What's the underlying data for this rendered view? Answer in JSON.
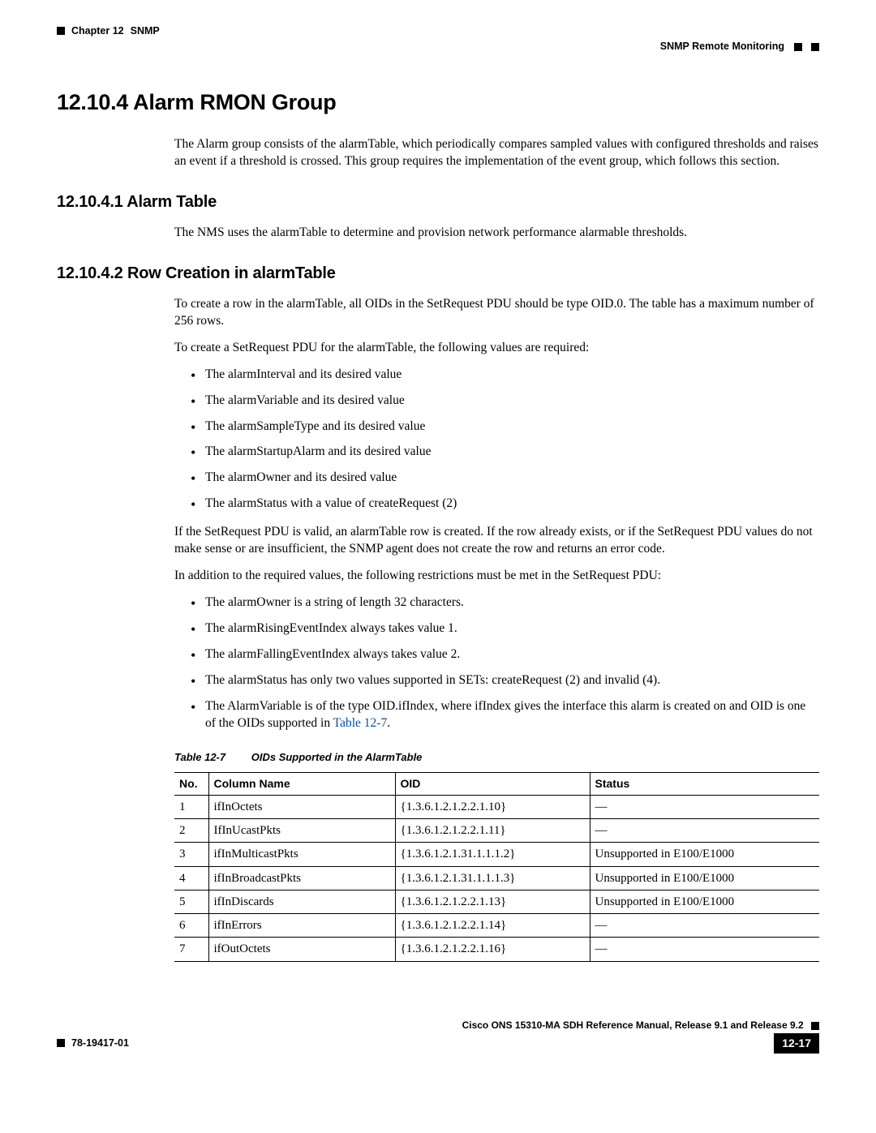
{
  "header": {
    "chapter_label": "Chapter 12",
    "chapter_title": "SNMP",
    "section_title": "SNMP Remote Monitoring"
  },
  "headings": {
    "h1": "12.10.4  Alarm RMON Group",
    "h2_1": "12.10.4.1  Alarm Table",
    "h2_2": "12.10.4.2  Row Creation in alarmTable"
  },
  "paragraphs": {
    "intro": "The Alarm group consists of the alarmTable, which periodically compares sampled values with configured thresholds and raises an event if a threshold is crossed. This group requires the implementation of the event group, which follows this section.",
    "alarm_table": "The NMS uses the alarmTable to determine and provision network performance alarmable thresholds.",
    "row_creation_1": "To create a row in the alarmTable, all OIDs in the SetRequest PDU should be type OID.0. The table has a maximum number of 256 rows.",
    "row_creation_2": "To create a SetRequest PDU for the alarmTable, the following values are required:",
    "row_creation_3": "If the SetRequest PDU is valid, an alarmTable row is created. If the row already exists, or if the SetRequest PDU values do not make sense or are insufficient, the SNMP agent does not create the row and returns an error code.",
    "row_creation_4": "In addition to the required values, the following restrictions must be met in the SetRequest PDU:"
  },
  "list_required": [
    "The alarmInterval and its desired value",
    "The alarmVariable and its desired value",
    "The alarmSampleType and its desired value",
    "The alarmStartupAlarm and its desired value",
    "The alarmOwner and its desired value",
    "The alarmStatus with a value of createRequest (2)"
  ],
  "list_restrictions": [
    "The alarmOwner is a string of length 32 characters.",
    "The alarmRisingEventIndex always takes value 1.",
    "The alarmFallingEventIndex always takes value 2.",
    "The alarmStatus has only two values supported in SETs: createRequest (2) and invalid (4)."
  ],
  "list_restrictions_last_pre": "The AlarmVariable is of the type OID.ifIndex, where ifIndex gives the interface this alarm is created on and OID is one of the OIDs supported in ",
  "list_restrictions_last_link": "Table 12-7",
  "list_restrictions_last_post": ".",
  "table": {
    "caption_label": "Table 12-7",
    "caption_title": "OIDs Supported in the AlarmTable",
    "columns": [
      "No.",
      "Column Name",
      "OID",
      "Status"
    ],
    "rows": [
      [
        "1",
        "ifInOctets",
        "{1.3.6.1.2.1.2.2.1.10}",
        "—"
      ],
      [
        "2",
        "IfInUcastPkts",
        "{1.3.6.1.2.1.2.2.1.11}",
        "—"
      ],
      [
        "3",
        "ifInMulticastPkts",
        "{1.3.6.1.2.1.31.1.1.1.2}",
        "Unsupported in E100/E1000"
      ],
      [
        "4",
        "ifInBroadcastPkts",
        "{1.3.6.1.2.1.31.1.1.1.3}",
        "Unsupported in E100/E1000"
      ],
      [
        "5",
        "ifInDiscards",
        "{1.3.6.1.2.1.2.2.1.13}",
        "Unsupported in E100/E1000"
      ],
      [
        "6",
        "ifInErrors",
        "{1.3.6.1.2.1.2.2.1.14}",
        "—"
      ],
      [
        "7",
        "ifOutOctets",
        "{1.3.6.1.2.1.2.2.1.16}",
        "—"
      ]
    ]
  },
  "footer": {
    "manual_title": "Cisco ONS 15310-MA SDH Reference Manual, Release 9.1 and Release 9.2",
    "doc_number": "78-19417-01",
    "page_number": "12-17"
  }
}
